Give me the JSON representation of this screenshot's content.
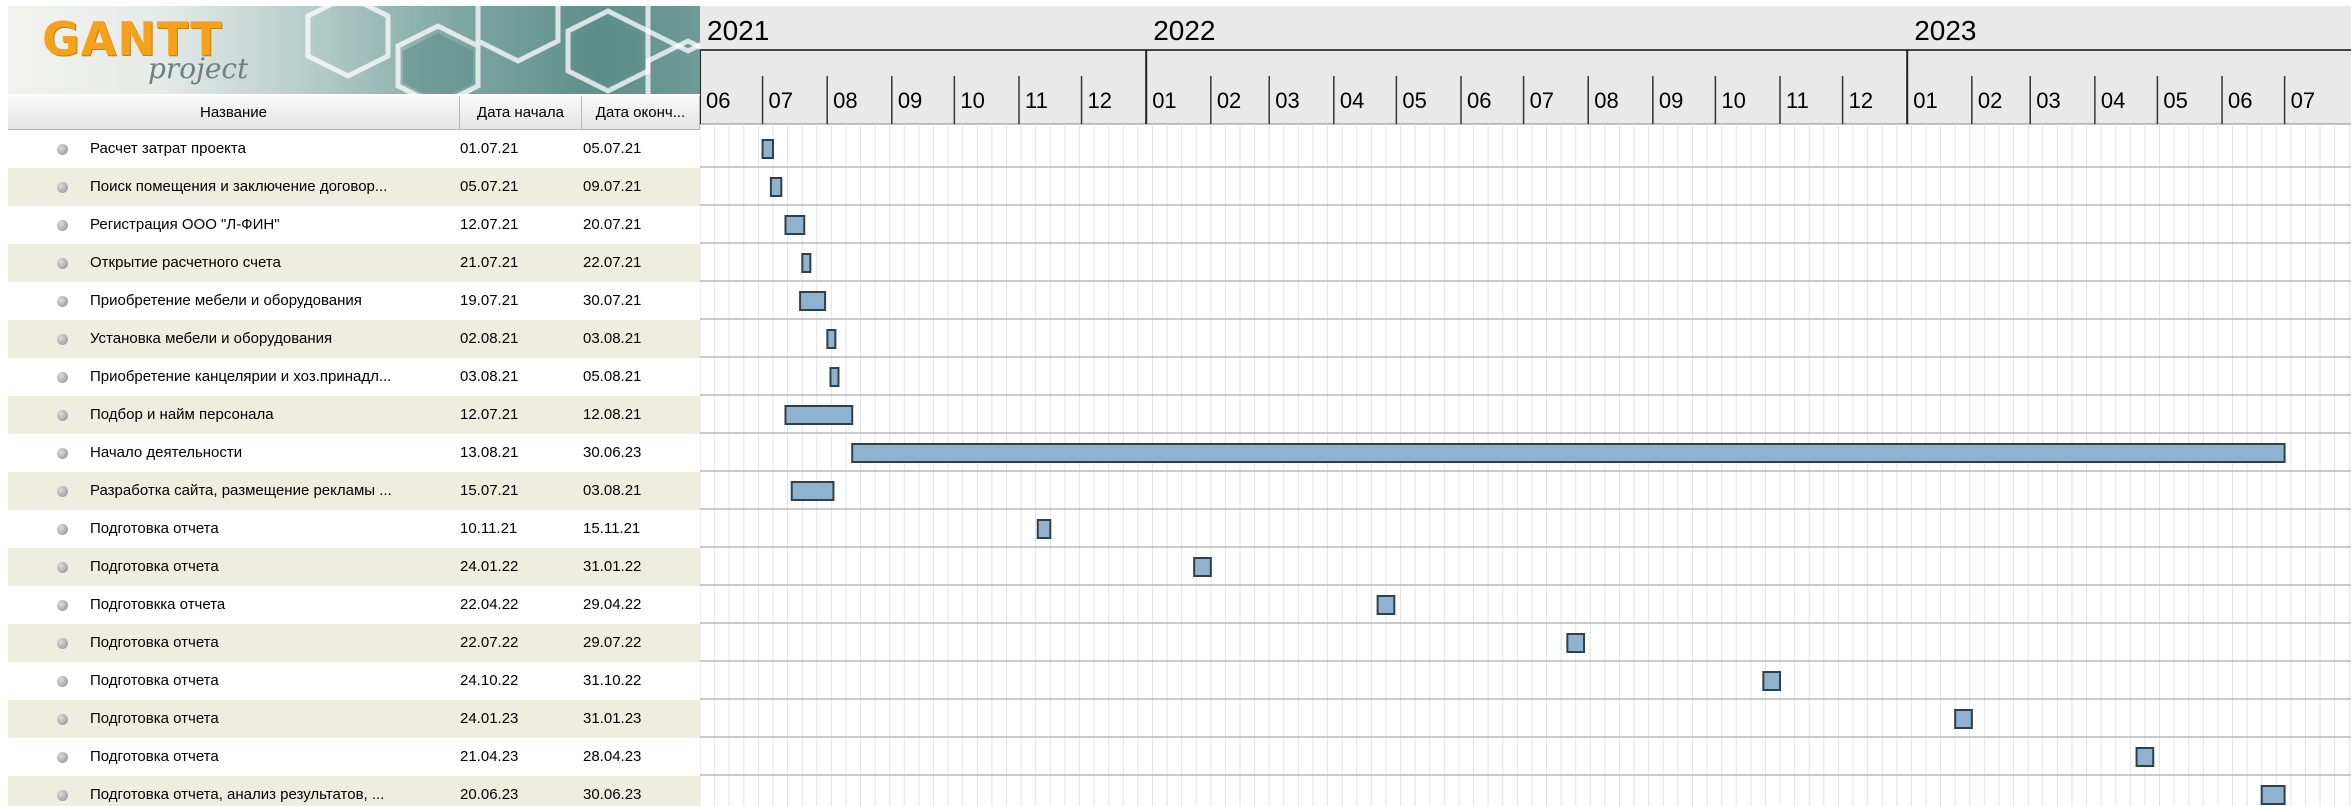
{
  "logo": {
    "title": "GANTT",
    "subtitle": "project"
  },
  "table": {
    "headers": {
      "name": "Название",
      "start": "Дата начала",
      "end": "Дата оконч..."
    }
  },
  "tasks": [
    {
      "name": "Расчет затрат проекта",
      "start": "01.07.21",
      "end": "05.07.21"
    },
    {
      "name": "Поиск помещения и заключение договор...",
      "start": "05.07.21",
      "end": "09.07.21"
    },
    {
      "name": "Регистрация ООО \"Л-ФИН\"",
      "start": "12.07.21",
      "end": "20.07.21"
    },
    {
      "name": "Открытие расчетного счета",
      "start": "21.07.21",
      "end": "22.07.21"
    },
    {
      "name": "Приобретение мебели и оборудования",
      "start": "19.07.21",
      "end": "30.07.21"
    },
    {
      "name": "Установка мебели и оборудования",
      "start": "02.08.21",
      "end": "03.08.21"
    },
    {
      "name": "Приобретение канцелярии и хоз.принадл...",
      "start": "03.08.21",
      "end": "05.08.21"
    },
    {
      "name": "Подбор и найм персонала",
      "start": "12.07.21",
      "end": "12.08.21"
    },
    {
      "name": "Начало деятельности",
      "start": "13.08.21",
      "end": "30.06.23"
    },
    {
      "name": "Разработка сайта, размещение рекламы ...",
      "start": "15.07.21",
      "end": "03.08.21"
    },
    {
      "name": "Подготовка отчета",
      "start": "10.11.21",
      "end": "15.11.21"
    },
    {
      "name": "Подготовка отчета",
      "start": "24.01.22",
      "end": "31.01.22"
    },
    {
      "name": "Подготовкка отчета",
      "start": "22.04.22",
      "end": "29.04.22"
    },
    {
      "name": "Подготовка отчета",
      "start": "22.07.22",
      "end": "29.07.22"
    },
    {
      "name": "Подготовка отчета",
      "start": "24.10.22",
      "end": "31.10.22"
    },
    {
      "name": "Подготовка отчета",
      "start": "24.01.23",
      "end": "31.01.23"
    },
    {
      "name": "Подготовка отчета",
      "start": "21.04.23",
      "end": "28.04.23"
    },
    {
      "name": "Подготовка отчета, анализ результатов, ...",
      "start": "20.06.23",
      "end": "30.06.23"
    }
  ],
  "timeline": {
    "years": [
      {
        "label": "2021",
        "month_index": 0
      },
      {
        "label": "2022",
        "month_index": 7
      },
      {
        "label": "2023",
        "month_index": 19
      }
    ],
    "months": [
      "06",
      "07",
      "08",
      "09",
      "10",
      "11",
      "12",
      "01",
      "02",
      "03",
      "04",
      "05",
      "06",
      "07",
      "08",
      "09",
      "10",
      "11",
      "12",
      "01",
      "02",
      "03",
      "04",
      "05",
      "06",
      "07"
    ],
    "first_month": "2021-06"
  },
  "colors": {
    "bar_fill": "#8fb3cf",
    "bar_stroke": "#2f3f4c",
    "header_bg": "#e9e9e9",
    "alt_row": "#eeeedf",
    "logo_orange": "#f6a11b"
  }
}
